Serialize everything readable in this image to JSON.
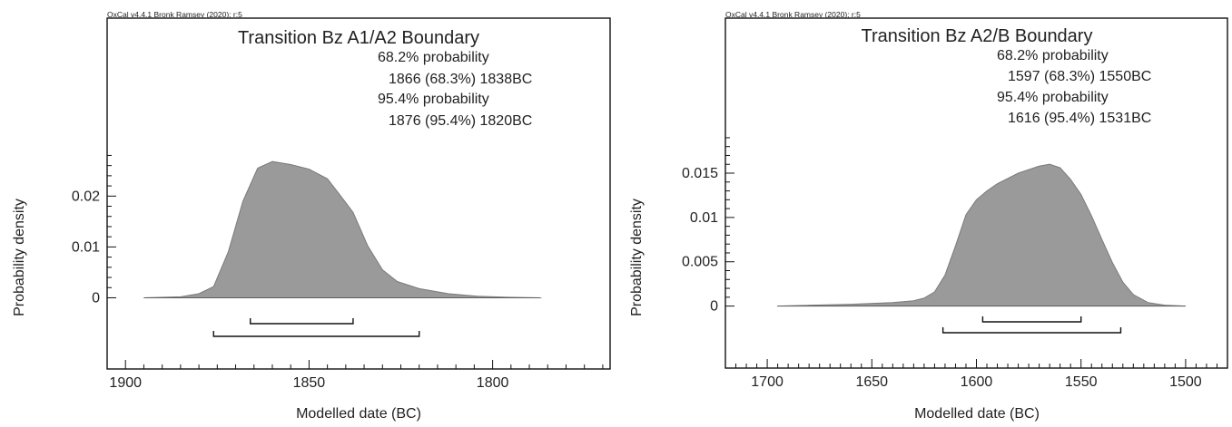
{
  "chart_data": [
    {
      "type": "area",
      "credit": "OxCal v4.4.1 Bronk Ramsey (2020); r:5",
      "title": "Transition Bz A1/A2 Boundary",
      "summary": [
        "68.2% probability",
        "1866 (68.3%) 1838BC",
        "95.4% probability",
        "1876 (95.4%) 1820BC"
      ],
      "xlabel": "Modelled date (BC)",
      "ylabel": "Probability density",
      "xlim": [
        1905,
        1768
      ],
      "ylim": [
        -0.014,
        0.055
      ],
      "x_ticks": [
        1900,
        1850,
        1800
      ],
      "y_ticks": [
        0,
        0.01,
        0.02
      ],
      "y_tick_labels": [
        "0",
        "0.01",
        "0.02"
      ],
      "x": [
        1895,
        1885,
        1880,
        1876,
        1872,
        1868,
        1864,
        1860,
        1855,
        1850,
        1845,
        1842,
        1838,
        1834,
        1830,
        1826,
        1820,
        1812,
        1804,
        1796,
        1787
      ],
      "y": [
        0,
        0.0002,
        0.0008,
        0.0022,
        0.009,
        0.019,
        0.0255,
        0.0268,
        0.0262,
        0.0253,
        0.0234,
        0.0206,
        0.0168,
        0.0102,
        0.0055,
        0.0032,
        0.0018,
        0.0008,
        0.0003,
        0.0001,
        0
      ],
      "hpd": [
        {
          "label": "68.2%",
          "from": 1866,
          "to": 1838
        },
        {
          "label": "95.4%",
          "from": 1876,
          "to": 1820
        }
      ]
    },
    {
      "type": "area",
      "credit": "OxCal v4.4.1 Bronk Ramsey (2020); r:5",
      "title": "Transition Bz A2/B Boundary",
      "summary": [
        "68.2% probability",
        "1597 (68.3%) 1550BC",
        "95.4% probability",
        "1616 (95.4%) 1531BC"
      ],
      "xlabel": "Modelled date (BC)",
      "ylabel": "Probability density",
      "xlim": [
        1720,
        1480
      ],
      "ylim": [
        -0.007,
        0.0325
      ],
      "x_ticks": [
        1700,
        1650,
        1600,
        1550,
        1500
      ],
      "y_ticks": [
        0,
        0.005,
        0.01,
        0.015
      ],
      "y_tick_labels": [
        "0",
        "0.005",
        "0.01",
        "0.015"
      ],
      "x": [
        1695,
        1660,
        1640,
        1630,
        1625,
        1620,
        1615,
        1610,
        1605,
        1600,
        1595,
        1590,
        1580,
        1570,
        1565,
        1560,
        1555,
        1550,
        1545,
        1540,
        1535,
        1530,
        1525,
        1518,
        1510,
        1500
      ],
      "y": [
        0,
        0.0002,
        0.0004,
        0.0006,
        0.0009,
        0.0016,
        0.0035,
        0.0068,
        0.0103,
        0.012,
        0.013,
        0.0138,
        0.015,
        0.0158,
        0.016,
        0.0156,
        0.0143,
        0.0126,
        0.0102,
        0.0075,
        0.0049,
        0.0027,
        0.0013,
        0.0004,
        0.0001,
        0
      ],
      "hpd": [
        {
          "label": "68.2%",
          "from": 1597,
          "to": 1550
        },
        {
          "label": "95.4%",
          "from": 1616,
          "to": 1531
        }
      ]
    }
  ]
}
